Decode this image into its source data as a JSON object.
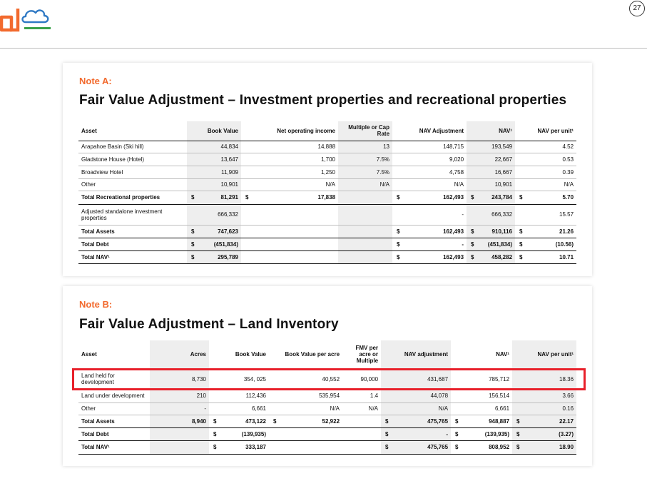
{
  "header": {
    "page_number": "27",
    "colors": {
      "logo_orange": "#f26a2e",
      "logo_blue": "#2f79c4",
      "logo_green": "#3aa14a",
      "note_orange": "#f26a2e",
      "highlight_red": "#e8202a"
    }
  },
  "note_a": {
    "label": "Note A:",
    "title": "Fair Value Adjustment – Investment properties and recreational properties",
    "headers": {
      "asset": "Asset",
      "book_value": "Book Value",
      "noi": "Net operating income",
      "cap_rate": "Multiple or Cap Rate",
      "nav_adjustment": "NAV Adjustment",
      "nav": "NAV¹",
      "nav_per_unit": "NAV per unit¹"
    },
    "rows": [
      {
        "asset": "Arapahoe Basin (Ski hill)",
        "bv_cur": "",
        "book_value": "44,834",
        "noi_cur": "",
        "noi": "14,888",
        "cap_rate": "13",
        "adj_cur": "",
        "nav_adjustment": "148,715",
        "nav_cur": "",
        "nav": "193,549",
        "npu_cur": "",
        "nav_per_unit": "4.52"
      },
      {
        "asset": "Gladstone House (Hotel)",
        "bv_cur": "",
        "book_value": "13,647",
        "noi_cur": "",
        "noi": "1,700",
        "cap_rate": "7.5%",
        "adj_cur": "",
        "nav_adjustment": "9,020",
        "nav_cur": "",
        "nav": "22,667",
        "npu_cur": "",
        "nav_per_unit": "0.53"
      },
      {
        "asset": "Broadview Hotel",
        "bv_cur": "",
        "book_value": "11,909",
        "noi_cur": "",
        "noi": "1,250",
        "cap_rate": "7.5%",
        "adj_cur": "",
        "nav_adjustment": "4,758",
        "nav_cur": "",
        "nav": "16,667",
        "npu_cur": "",
        "nav_per_unit": "0.39"
      },
      {
        "asset": "Other",
        "bv_cur": "",
        "book_value": "10,901",
        "noi_cur": "",
        "noi": "N/A",
        "cap_rate": "N/A",
        "adj_cur": "",
        "nav_adjustment": "N/A",
        "nav_cur": "",
        "nav": "10,901",
        "npu_cur": "",
        "nav_per_unit": "N/A"
      },
      {
        "asset": "Total Recreational properties",
        "bv_cur": "$",
        "book_value": "81,291",
        "noi_cur": "$",
        "noi": "17,838",
        "cap_rate": "",
        "adj_cur": "$",
        "nav_adjustment": "162,493",
        "nav_cur": "$",
        "nav": "243,784",
        "npu_cur": "$",
        "nav_per_unit": "5.70"
      },
      {
        "asset": "Adjusted standalone investment properties",
        "bv_cur": "",
        "book_value": "666,332",
        "noi_cur": "",
        "noi": "",
        "cap_rate": "",
        "adj_cur": "",
        "nav_adjustment": "-",
        "nav_cur": "",
        "nav": "666,332",
        "npu_cur": "",
        "nav_per_unit": "15.57"
      },
      {
        "asset": "Total Assets",
        "bv_cur": "$",
        "book_value": "747,623",
        "noi_cur": "",
        "noi": "",
        "cap_rate": "",
        "adj_cur": "$",
        "nav_adjustment": "162,493",
        "nav_cur": "$",
        "nav": "910,116",
        "npu_cur": "$",
        "nav_per_unit": "21.26"
      },
      {
        "asset": "Total Debt",
        "bv_cur": "$",
        "book_value": "(451,834)",
        "noi_cur": "",
        "noi": "",
        "cap_rate": "",
        "adj_cur": "$",
        "nav_adjustment": "-",
        "nav_cur": "$",
        "nav": "(451,834)",
        "npu_cur": "$",
        "nav_per_unit": "(10.56)"
      },
      {
        "asset": "Total NAV¹",
        "bv_cur": "$",
        "book_value": "295,789",
        "noi_cur": "",
        "noi": "",
        "cap_rate": "",
        "adj_cur": "$",
        "nav_adjustment": "162,493",
        "nav_cur": "$",
        "nav": "458,282",
        "npu_cur": "$",
        "nav_per_unit": "10.71"
      }
    ]
  },
  "note_b": {
    "label": "Note B:",
    "title": "Fair Value Adjustment – Land Inventory",
    "headers": {
      "asset": "Asset",
      "acres": "Acres",
      "book_value": "Book Value",
      "bv_per_acre": "Book Value per acre",
      "fmv": "FMV per acre or Multiple",
      "nav_adjustment": "NAV adjustment",
      "nav": "NAV¹",
      "nav_per_unit": "NAV per unit¹"
    },
    "rows": [
      {
        "asset": "Land held for development",
        "acres": "8,730",
        "bv_cur": "",
        "book_value": "354, 025",
        "bpa_cur": "",
        "bv_per_acre": "40,552",
        "fmv": "90,000",
        "adj_cur": "",
        "nav_adjustment": "431,687",
        "nav_cur": "",
        "nav": "785,712",
        "npu_cur": "",
        "nav_per_unit": "18.36"
      },
      {
        "asset": "Land under development",
        "acres": "210",
        "bv_cur": "",
        "book_value": "112,436",
        "bpa_cur": "",
        "bv_per_acre": "535,954",
        "fmv": "1.4",
        "adj_cur": "",
        "nav_adjustment": "44,078",
        "nav_cur": "",
        "nav": "156,514",
        "npu_cur": "",
        "nav_per_unit": "3.66"
      },
      {
        "asset": "Other",
        "acres": "-",
        "bv_cur": "",
        "book_value": "6,661",
        "bpa_cur": "",
        "bv_per_acre": "N/A",
        "fmv": "N/A",
        "adj_cur": "",
        "nav_adjustment": "N/A",
        "nav_cur": "",
        "nav": "6,661",
        "npu_cur": "",
        "nav_per_unit": "0.16"
      },
      {
        "asset": "Total Assets",
        "acres": "8,940",
        "bv_cur": "$",
        "book_value": "473,122",
        "bpa_cur": "$",
        "bv_per_acre": "52,922",
        "fmv": "",
        "adj_cur": "$",
        "nav_adjustment": "475,765",
        "nav_cur": "$",
        "nav": "948,887",
        "npu_cur": "$",
        "nav_per_unit": "22.17"
      },
      {
        "asset": "Total Debt",
        "acres": "",
        "bv_cur": "$",
        "book_value": "(139,935)",
        "bpa_cur": "",
        "bv_per_acre": "",
        "fmv": "",
        "adj_cur": "$",
        "nav_adjustment": "-",
        "nav_cur": "$",
        "nav": "(139,935)",
        "npu_cur": "$",
        "nav_per_unit": "(3.27)"
      },
      {
        "asset": "Total NAV¹",
        "acres": "",
        "bv_cur": "$",
        "book_value": "333,187",
        "bpa_cur": "",
        "bv_per_acre": "",
        "fmv": "",
        "adj_cur": "$",
        "nav_adjustment": "475,765",
        "nav_cur": "$",
        "nav": "808,952",
        "npu_cur": "$",
        "nav_per_unit": "18.90"
      }
    ]
  }
}
